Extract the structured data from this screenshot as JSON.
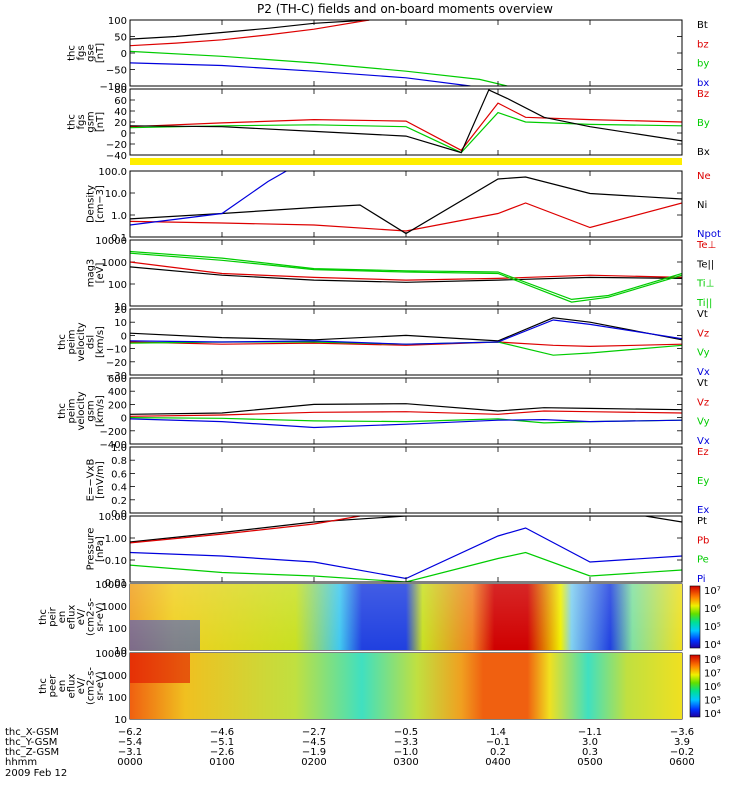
{
  "title": "P2 (TH-C) fields and on-board moments overview",
  "colors": {
    "black": "#000000",
    "red": "#dd0000",
    "green": "#00cc00",
    "blue": "#0000dd",
    "yellow": "#ffee00"
  },
  "panels": [
    {
      "id": "fgs-gse",
      "ylabel": [
        "thc",
        "fgs",
        "gse",
        "[nT]"
      ],
      "ticks": [
        "100",
        "50",
        "0",
        "−50",
        "−100"
      ],
      "legend": [
        {
          "text": "Bt",
          "color": "#000000"
        },
        {
          "text": "bz",
          "color": "#dd0000"
        },
        {
          "text": "by",
          "color": "#00cc00"
        },
        {
          "text": "bx",
          "color": "#0000dd"
        }
      ]
    },
    {
      "id": "fgs-gsm",
      "ylabel": [
        "thc",
        "fgs",
        "gsm",
        "[nT]"
      ],
      "ticks": [
        "80",
        "60",
        "40",
        "20",
        "0",
        "−20",
        "−40"
      ],
      "legend": [
        {
          "text": "Bz",
          "color": "#dd0000"
        },
        {
          "text": "By",
          "color": "#00cc00"
        },
        {
          "text": "Bx",
          "color": "#000000"
        }
      ]
    },
    {
      "id": "density",
      "ylabel": [
        "Density",
        "[cm−3]"
      ],
      "ticks": [
        "100.0",
        "10.0",
        "1.0",
        "0.1"
      ],
      "legend": [
        {
          "text": "Ne",
          "color": "#dd0000"
        },
        {
          "text": "Ni",
          "color": "#000000"
        },
        {
          "text": "Npot",
          "color": "#0000dd"
        }
      ]
    },
    {
      "id": "temperature",
      "ylabel": [
        "mag3",
        "[eV]"
      ],
      "ticks": [
        "10000",
        "1000",
        "100",
        "10"
      ],
      "legend": [
        {
          "text": "Te⊥",
          "color": "#dd0000"
        },
        {
          "text": "Te||",
          "color": "#000000"
        },
        {
          "text": "Ti⊥",
          "color": "#00cc00"
        },
        {
          "text": "Ti||",
          "color": "#00cc00"
        }
      ]
    },
    {
      "id": "velocity-dsl",
      "ylabel": [
        "thc",
        "peim",
        "velocity",
        "dsl",
        "[km/s]"
      ],
      "ticks": [
        "20",
        "10",
        "0",
        "−10",
        "−20",
        "−30"
      ],
      "legend": [
        {
          "text": "Vt",
          "color": "#000000"
        },
        {
          "text": "Vz",
          "color": "#dd0000"
        },
        {
          "text": "Vy",
          "color": "#00cc00"
        },
        {
          "text": "Vx",
          "color": "#0000dd"
        }
      ]
    },
    {
      "id": "velocity-gsm",
      "ylabel": [
        "thc",
        "peim",
        "velocity",
        "gsm",
        "[km/s]"
      ],
      "ticks": [
        "600",
        "400",
        "200",
        "0",
        "−200",
        "−400"
      ],
      "legend": [
        {
          "text": "Vt",
          "color": "#000000"
        },
        {
          "text": "Vz",
          "color": "#dd0000"
        },
        {
          "text": "Vy",
          "color": "#00cc00"
        },
        {
          "text": "Vx",
          "color": "#0000dd"
        }
      ]
    },
    {
      "id": "efield",
      "ylabel": [
        "E=−VxB",
        "[mV/m]"
      ],
      "ticks": [
        "1.0",
        "0.8",
        "0.6",
        "0.4",
        "0.2",
        "0.0"
      ],
      "legend": [
        {
          "text": "Ez",
          "color": "#dd0000"
        },
        {
          "text": "Ey",
          "color": "#00cc00"
        },
        {
          "text": "Ex",
          "color": "#0000dd"
        }
      ]
    },
    {
      "id": "pressure",
      "ylabel": [
        "Pressure",
        "[nPa]"
      ],
      "ticks": [
        "10.00",
        "1.00",
        "0.10",
        "0.01"
      ],
      "legend": [
        {
          "text": "Pt",
          "color": "#000000"
        },
        {
          "text": "Pb",
          "color": "#dd0000"
        },
        {
          "text": "Pe",
          "color": "#00cc00"
        },
        {
          "text": "Pi",
          "color": "#0000dd"
        }
      ]
    },
    {
      "id": "ion-spectrogram",
      "ylabel": [
        "thc",
        "peir",
        "en",
        "eflux",
        "eV/",
        "(cm2-s-",
        "sr-eV)"
      ],
      "ticks": [
        "10000",
        "1000",
        "100",
        "10"
      ],
      "legend": []
    },
    {
      "id": "electron-spectrogram",
      "ylabel": [
        "thc",
        "peer",
        "en",
        "eflux",
        "eV/",
        "(cm2-s-",
        "sr-eV)"
      ],
      "ticks": [
        "10000",
        "1000",
        "100",
        "10"
      ],
      "legend": []
    }
  ],
  "colorbars": [
    {
      "labels": [
        "10⁷",
        "10⁶",
        "10⁵",
        "10⁴"
      ]
    },
    {
      "labels": [
        "10⁸",
        "10⁷",
        "10⁶",
        "10⁵",
        "10⁴"
      ]
    }
  ],
  "footer": {
    "rows": [
      {
        "label": "thc_X-GSM",
        "values": [
          "−6.2",
          "−4.6",
          "−2.7",
          "−0.5",
          "1.4",
          "−1.1",
          "−3.6"
        ]
      },
      {
        "label": "thc_Y-GSM",
        "values": [
          "−5.4",
          "−5.1",
          "−4.5",
          "−3.3",
          "−0.1",
          "3.0",
          "3.9"
        ]
      },
      {
        "label": "thc_Z-GSM",
        "values": [
          "−3.1",
          "−2.6",
          "−1.9",
          "−1.0",
          "0.2",
          "0.3",
          "−0.2"
        ]
      },
      {
        "label": "hhmm",
        "values": [
          "0000",
          "0100",
          "0200",
          "0300",
          "0400",
          "0500",
          "0600"
        ]
      }
    ],
    "date": "2009 Feb 12"
  },
  "chart_data": {
    "type": "line",
    "title": "P2 (TH-C) fields and on-board moments overview",
    "x_unit": "hhmm",
    "x_ticks": [
      "0000",
      "0100",
      "0200",
      "0300",
      "0400",
      "0500",
      "0600"
    ],
    "panels": [
      {
        "ylabel": "thc fgs gse [nT]",
        "ylim": [
          -100,
          100
        ],
        "series": [
          {
            "name": "Bt",
            "x": [
              0,
              0.5,
              1,
              1.5,
              2,
              2.6
            ],
            "y": [
              42,
              50,
              62,
              75,
              90,
              100
            ]
          },
          {
            "name": "bz",
            "x": [
              0,
              0.5,
              1,
              1.5,
              2,
              2.6
            ],
            "y": [
              22,
              30,
              40,
              55,
              72,
              100
            ]
          },
          {
            "name": "by",
            "x": [
              0,
              1,
              2,
              3,
              3.8,
              4.1
            ],
            "y": [
              5,
              -10,
              -30,
              -55,
              -80,
              -100
            ]
          },
          {
            "name": "bx",
            "x": [
              0,
              1,
              2,
              3,
              3.7
            ],
            "y": [
              -30,
              -38,
              -55,
              -75,
              -100
            ]
          }
        ]
      },
      {
        "ylabel": "thc fgs gsm [nT]",
        "ylim": [
          -50,
          90
        ],
        "series": [
          {
            "name": "Bz",
            "x": [
              0,
              1,
              2,
              3,
              3.6,
              4.0,
              4.3,
              5,
              6
            ],
            "y": [
              10,
              18,
              25,
              22,
              -40,
              60,
              30,
              25,
              20
            ]
          },
          {
            "name": "By",
            "x": [
              0,
              1,
              2,
              3,
              3.6,
              4.0,
              4.3,
              5,
              6
            ],
            "y": [
              8,
              12,
              14,
              10,
              -45,
              40,
              20,
              15,
              12
            ]
          },
          {
            "name": "Bx",
            "x": [
              0,
              1,
              2,
              3,
              3.6,
              3.9,
              4.1,
              4.5,
              5,
              6
            ],
            "y": [
              12,
              10,
              0,
              -10,
              -45,
              88,
              70,
              30,
              10,
              -20
            ]
          }
        ]
      },
      {
        "ylabel": "Density [cm-3]",
        "ylim": [
          0.1,
          200
        ],
        "yscale": "log",
        "series": [
          {
            "name": "Ne",
            "x": [
              0,
              1,
              2,
              3,
              4,
              4.3,
              5,
              6
            ],
            "y": [
              0.6,
              0.5,
              0.4,
              0.2,
              1.5,
              5,
              0.3,
              5
            ]
          },
          {
            "name": "Ni",
            "x": [
              0,
              1,
              2,
              2.5,
              3,
              4,
              4.3,
              5,
              6
            ],
            "y": [
              0.8,
              1.5,
              3,
              4,
              0.15,
              80,
              100,
              15,
              8
            ]
          },
          {
            "name": "Npot",
            "x": [
              0,
              1,
              1.5,
              1.7
            ],
            "y": [
              0.4,
              1.5,
              60,
              200
            ]
          }
        ]
      },
      {
        "ylabel": "mag3 [eV]",
        "ylim": [
          10,
          10000
        ],
        "yscale": "log",
        "series": [
          {
            "name": "Te⊥",
            "x": [
              0,
              1,
              2,
              3,
              4,
              5,
              6
            ],
            "y": [
              1000,
              300,
              200,
              150,
              180,
              250,
              200
            ]
          },
          {
            "name": "Te||",
            "x": [
              0,
              1,
              2,
              3,
              4,
              5,
              6
            ],
            "y": [
              600,
              250,
              150,
              120,
              150,
              200,
              180
            ]
          },
          {
            "name": "Ti⊥",
            "x": [
              0,
              1,
              2,
              3,
              4,
              4.8,
              5.2,
              6
            ],
            "y": [
              3000,
              1500,
              500,
              400,
              350,
              20,
              30,
              300
            ]
          },
          {
            "name": "Ti||",
            "x": [
              0,
              1,
              2,
              3,
              4,
              4.8,
              5.2,
              6
            ],
            "y": [
              2500,
              1200,
              450,
              350,
              300,
              15,
              25,
              250
            ]
          }
        ]
      },
      {
        "ylabel": "thc peim velocity dsl [km/s]",
        "ylim": [
          -30,
          30
        ],
        "series": [
          {
            "name": "Vt",
            "x": [
              0,
              1,
              2,
              3,
              4,
              4.6,
              5,
              6
            ],
            "y": [
              8,
              4,
              2,
              6,
              1,
              22,
              18,
              2
            ]
          },
          {
            "name": "Vz",
            "x": [
              0,
              1,
              2,
              3,
              4,
              4.6,
              5,
              6
            ],
            "y": [
              0,
              -2,
              -1,
              -3,
              0,
              -3,
              -4,
              -2
            ]
          },
          {
            "name": "Vy",
            "x": [
              0,
              1,
              2,
              3,
              4,
              4.6,
              5,
              6
            ],
            "y": [
              -1,
              0,
              0,
              -2,
              0,
              -12,
              -10,
              -3
            ]
          },
          {
            "name": "Vx",
            "x": [
              0,
              1,
              2,
              3,
              4,
              4.6,
              5,
              6
            ],
            "y": [
              1,
              0,
              1,
              -2,
              0,
              20,
              16,
              3
            ]
          }
        ]
      },
      {
        "ylabel": "thc peim velocity gsm [km/s]",
        "ylim": [
          -400,
          600
        ],
        "series": [
          {
            "name": "Vt",
            "x": [
              0,
              1,
              2,
              3,
              4,
              4.5,
              5,
              6
            ],
            "y": [
              50,
              70,
              200,
              210,
              100,
              150,
              140,
              120
            ]
          },
          {
            "name": "Vz",
            "x": [
              0,
              1,
              2,
              3,
              4,
              4.5,
              5,
              6
            ],
            "y": [
              20,
              40,
              80,
              90,
              50,
              100,
              90,
              70
            ]
          },
          {
            "name": "Vy",
            "x": [
              0,
              1,
              2,
              3,
              4,
              4.5,
              5,
              6
            ],
            "y": [
              0,
              -10,
              -50,
              -60,
              -20,
              -80,
              -60,
              -40
            ]
          },
          {
            "name": "Vx",
            "x": [
              0,
              1,
              2,
              3,
              4,
              4.5,
              5,
              6
            ],
            "y": [
              -20,
              -60,
              -150,
              -100,
              -40,
              -30,
              -60,
              -40
            ]
          }
        ]
      },
      {
        "ylabel": "E=-VxB [mV/m]",
        "ylim": [
          0,
          1
        ],
        "series": []
      },
      {
        "ylabel": "Pressure [nPa]",
        "ylim": [
          0.01,
          20
        ],
        "yscale": "log",
        "series": [
          {
            "name": "Pt",
            "x": [
              0,
              1,
              2,
              3,
              4,
              5,
              5.6,
              6
            ],
            "y": [
              1.0,
              3,
              10,
              20,
              20,
              20,
              20,
              10
            ]
          },
          {
            "name": "Pb",
            "x": [
              0,
              1,
              2,
              2.5
            ],
            "y": [
              0.9,
              2.5,
              8,
              20
            ]
          },
          {
            "name": "Pe",
            "x": [
              0,
              1,
              2,
              3,
              4,
              4.3,
              5,
              6
            ],
            "y": [
              0.07,
              0.03,
              0.02,
              0.01,
              0.15,
              0.3,
              0.02,
              0.04
            ]
          },
          {
            "name": "Pi",
            "x": [
              0,
              1,
              2,
              3,
              4,
              4.3,
              5,
              6
            ],
            "y": [
              0.3,
              0.2,
              0.1,
              0.015,
              2,
              5,
              0.1,
              0.2
            ]
          }
        ]
      }
    ]
  }
}
